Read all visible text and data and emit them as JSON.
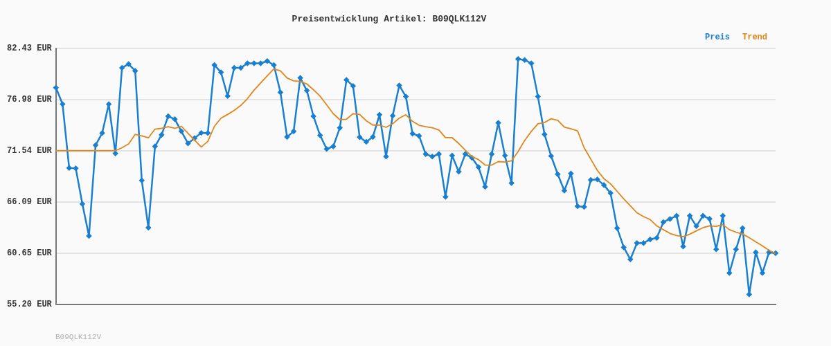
{
  "chart_data": {
    "type": "line",
    "title": "Preisentwicklung Artikel: B09QLK112V",
    "categories": [
      null,
      null,
      null,
      null,
      null,
      null,
      null,
      null,
      null,
      null,
      null,
      null,
      null,
      null,
      null,
      null,
      null,
      null,
      null,
      null,
      null,
      null,
      null,
      null,
      null,
      null,
      null,
      null,
      null,
      null,
      null,
      null,
      null,
      null,
      null,
      null,
      null,
      null,
      null,
      null,
      null,
      null,
      null,
      null,
      null,
      null,
      null,
      null,
      null,
      null,
      null,
      null,
      null,
      null,
      null,
      null,
      null,
      null,
      null,
      null,
      null,
      null,
      null,
      null,
      null,
      null,
      null,
      null,
      null,
      null,
      null,
      null,
      null,
      null,
      null,
      null,
      null,
      null,
      null,
      null,
      null,
      null,
      null,
      null,
      null,
      null,
      null,
      null,
      null,
      null,
      null,
      null,
      null,
      null,
      null,
      null,
      null,
      null,
      null,
      null,
      null,
      null,
      null,
      null,
      null,
      null,
      null,
      null,
      null,
      null
    ],
    "series": [
      {
        "name": "Preis",
        "color": "#1a7fcf",
        "marker": "diamond",
        "values": [
          78.23,
          76.48,
          69.71,
          69.66,
          65.88,
          62.48,
          72.12,
          73.41,
          76.48,
          71.24,
          80.34,
          80.74,
          80.02,
          68.37,
          63.36,
          71.99,
          73.22,
          75.2,
          74.88,
          73.59,
          72.31,
          72.87,
          73.43,
          73.41,
          80.64,
          79.86,
          77.34,
          80.34,
          80.34,
          80.82,
          80.82,
          80.82,
          81.06,
          80.64,
          77.74,
          73.0,
          73.59,
          79.27,
          77.93,
          75.2,
          73.17,
          71.72,
          71.99,
          73.97,
          79.06,
          78.41,
          72.98,
          72.47,
          73.0,
          75.36,
          70.92,
          75.25,
          78.47,
          77.29,
          73.35,
          73.11,
          71.18,
          70.92,
          71.18,
          66.63,
          71.02,
          69.31,
          71.18,
          70.78,
          69.79,
          67.7,
          71.18,
          74.5,
          71.02,
          68.1,
          81.28,
          81.17,
          80.82,
          77.29,
          73.27,
          70.97,
          69.04,
          67.3,
          69.12,
          65.64,
          65.56,
          68.43,
          68.48,
          67.89,
          67.03,
          63.31,
          61.27,
          59.99,
          61.73,
          61.73,
          62.11,
          62.27,
          63.95,
          64.28,
          64.62,
          61.36,
          64.62,
          63.52,
          64.62,
          64.3,
          61.06,
          64.62,
          58.54,
          61.06,
          63.31,
          56.27,
          60.74,
          58.54,
          60.74,
          60.65
        ]
      },
      {
        "name": "Trend",
        "color": "#e0861a",
        "marker": "none",
        "values": [
          71.54,
          71.54,
          71.54,
          71.54,
          71.54,
          71.54,
          71.54,
          71.54,
          71.54,
          71.54,
          71.85,
          72.25,
          73.27,
          73.11,
          72.9,
          73.83,
          73.91,
          74.08,
          73.91,
          74.13,
          73.38,
          72.66,
          71.93,
          72.52,
          74.13,
          74.99,
          75.39,
          75.82,
          76.35,
          77.07,
          77.96,
          78.73,
          79.48,
          80.23,
          80.02,
          79.27,
          78.95,
          78.9,
          78.63,
          78.01,
          77.34,
          76.41,
          75.47,
          74.83,
          74.88,
          75.47,
          75.39,
          74.72,
          74.26,
          74.26,
          74.02,
          74.4,
          74.99,
          75.36,
          74.66,
          74.24,
          74.08,
          73.97,
          73.73,
          72.92,
          72.92,
          72.31,
          71.58,
          70.92,
          70.59,
          70.01,
          70.01,
          70.38,
          70.33,
          70.46,
          71.45,
          72.63,
          73.59,
          74.4,
          74.53,
          74.93,
          74.77,
          74.05,
          73.86,
          73.65,
          71.85,
          70.65,
          69.44,
          68.56,
          68.02,
          67.22,
          66.42,
          65.69,
          64.94,
          64.54,
          64.22,
          63.55,
          63.15,
          62.75,
          62.53,
          62.4,
          62.67,
          63.02,
          63.36,
          63.55,
          63.5,
          63.68,
          63.15,
          62.88,
          62.69,
          62.29,
          61.86,
          61.43,
          60.95,
          60.61
        ]
      }
    ],
    "ylim": [
      55.2,
      82.43
    ],
    "yticks": [
      {
        "value": 55.2,
        "label": "55.20 EUR"
      },
      {
        "value": 60.65,
        "label": "60.65 EUR"
      },
      {
        "value": 66.09,
        "label": "66.09 EUR"
      },
      {
        "value": 71.54,
        "label": "71.54 EUR"
      },
      {
        "value": 76.98,
        "label": "76.98 EUR"
      },
      {
        "value": 82.43,
        "label": "82.43 EUR"
      }
    ],
    "grid": "y",
    "legend": "top right",
    "line_style": "solid",
    "annotations": [
      "B09QLK112V"
    ]
  }
}
